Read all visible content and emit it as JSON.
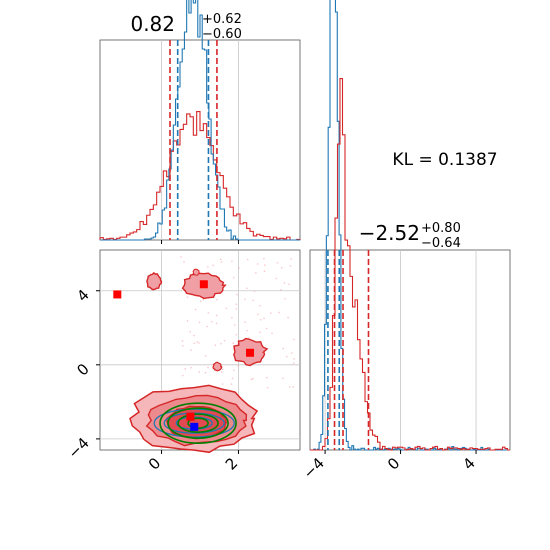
{
  "chart_data": [
    {
      "type": "histogram",
      "panel": "marginal-param-1",
      "title": {
        "value": "0.82",
        "plus": "+0.62",
        "minus": "−0.60"
      },
      "xlim": [
        -1.6,
        3.6
      ],
      "series": [
        {
          "name": "",
          "color": "#1f77b4",
          "quantiles": [
            0.42,
            1.22
          ]
        },
        {
          "name": "",
          "color": "#d62728",
          "quantiles": [
            0.22,
            1.44
          ]
        }
      ],
      "xticks": [
        0,
        2
      ]
    },
    {
      "type": "histogram",
      "panel": "marginal-param-2",
      "title": {
        "value": "−2.52",
        "plus": "+0.80",
        "minus": "−0.64"
      },
      "xlim": [
        -4.8,
        5.8
      ],
      "series": [
        {
          "name": "",
          "color": "#1f77b4",
          "quantiles": [
            -3.85,
            -3.25
          ]
        },
        {
          "name": "",
          "color": "#d62728",
          "quantiles": [
            -3.5,
            -3.05,
            -1.7
          ]
        }
      ],
      "xticks": [
        -4,
        0,
        4
      ],
      "xtick_labels": [
        "−4",
        "0",
        "4"
      ]
    },
    {
      "type": "contour",
      "panel": "joint-param-1-param-2",
      "xlim": [
        -1.6,
        3.6
      ],
      "ylim": [
        -4.6,
        6.2
      ],
      "xticks": [
        0,
        2
      ],
      "yticks": [
        -4,
        0,
        4
      ],
      "ytick_labels": [
        "−4",
        "0",
        "4"
      ],
      "markers": [
        {
          "color": "#ff0000",
          "x": -1.15,
          "y": 3.8
        },
        {
          "color": "#ff0000",
          "x": 1.1,
          "y": 4.35
        },
        {
          "color": "#ff0000",
          "x": 2.3,
          "y": 0.65
        },
        {
          "color": "#ff0000",
          "x": 0.75,
          "y": -2.8
        },
        {
          "color": "#0000ff",
          "x": 0.85,
          "y": -3.35
        }
      ]
    }
  ],
  "annotation": {
    "kl_text": "KL = 0.1387"
  },
  "colors": {
    "blue": "#1f77b4",
    "red": "#d62728",
    "green": "#008000",
    "grid": "#c8c8c8"
  }
}
